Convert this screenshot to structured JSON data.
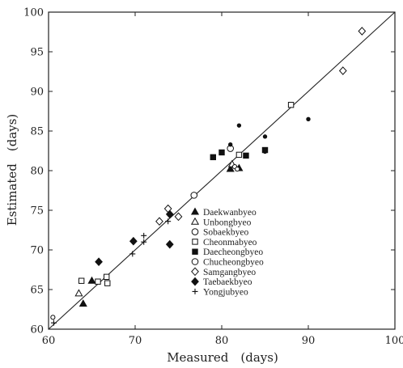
{
  "chart_data": {
    "type": "scatter",
    "xlabel": "Measured　(days)",
    "ylabel": "Estimated　(days)",
    "xlim": [
      60,
      100
    ],
    "ylim": [
      60,
      100
    ],
    "xticks": [
      "60",
      "70",
      "80",
      "90",
      "100"
    ],
    "yticks": [
      "60",
      "65",
      "70",
      "75",
      "80",
      "85",
      "90",
      "95",
      "100"
    ],
    "grid": false,
    "reference_line": "1:1",
    "legend_position": "center",
    "series": [
      {
        "name": "Daekwanbyeo",
        "marker": "triangle-filled",
        "points": [
          [
            64,
            63.2
          ],
          [
            65,
            66.1
          ],
          [
            81,
            80.2
          ],
          [
            82,
            80.3
          ]
        ]
      },
      {
        "name": "Unbongbyeo",
        "marker": "triangle-open",
        "points": [
          [
            63.5,
            64.5
          ],
          [
            81.2,
            80.8
          ]
        ]
      },
      {
        "name": "Sobaekbyeo",
        "marker": "circle-small-open",
        "points": [
          [
            60.5,
            61.5
          ],
          [
            81.5,
            80.5
          ],
          [
            81.8,
            80.2
          ]
        ]
      },
      {
        "name": "Cheonmabyeo",
        "marker": "square-open",
        "points": [
          [
            63.8,
            66.1
          ],
          [
            65.7,
            66
          ],
          [
            66.7,
            66.6
          ],
          [
            66.8,
            65.8
          ],
          [
            82,
            82
          ],
          [
            88,
            88.3
          ]
        ]
      },
      {
        "name": "Daecheongbyeo",
        "marker": "square-filled",
        "points": [
          [
            79,
            81.7
          ],
          [
            80,
            82.3
          ],
          [
            82.8,
            81.9
          ],
          [
            85,
            82.6
          ]
        ]
      },
      {
        "name": "Chucheongbyeo",
        "marker": "circle-open",
        "points": [
          [
            76.8,
            76.9
          ],
          [
            81,
            82.8
          ]
        ]
      },
      {
        "name": "Samgangbyeo",
        "marker": "diamond-open",
        "points": [
          [
            72.8,
            73.6
          ],
          [
            73.8,
            75.2
          ],
          [
            75,
            74.2
          ],
          [
            94,
            92.6
          ],
          [
            96.2,
            97.6
          ]
        ]
      },
      {
        "name": "Taebaekbyeo",
        "marker": "diamond-filled",
        "points": [
          [
            65.8,
            68.5
          ],
          [
            69.8,
            71.1
          ],
          [
            74,
            70.7
          ],
          [
            74,
            74.5
          ]
        ]
      },
      {
        "name": "Yongjubyeo",
        "marker": "plus",
        "points": [
          [
            60.6,
            60.8
          ],
          [
            69.7,
            69.5
          ],
          [
            71,
            71.8
          ],
          [
            71,
            71
          ],
          [
            73.8,
            73.6
          ]
        ]
      },
      {
        "name": "",
        "marker": "dot-filled",
        "points": [
          [
            81,
            83.3
          ],
          [
            82,
            85.7
          ],
          [
            85,
            84.3
          ],
          [
            90,
            86.5
          ],
          [
            85,
            82.4
          ]
        ]
      }
    ]
  }
}
